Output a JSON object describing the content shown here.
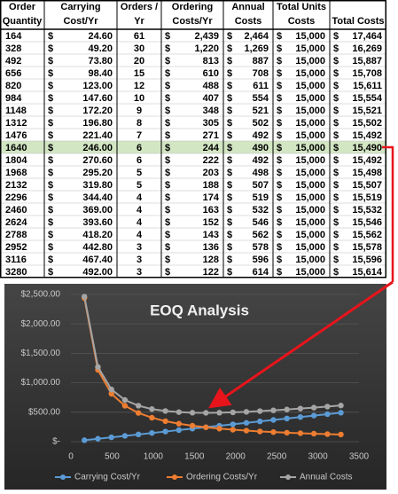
{
  "table": {
    "currency": "$",
    "header": [
      [
        "Order",
        "Quantity"
      ],
      [
        "Carrying",
        "Cost/Yr"
      ],
      [
        "Orders /",
        "Yr"
      ],
      [
        "Ordering",
        "Costs/Yr"
      ],
      [
        "Annual",
        "Costs"
      ],
      [
        "Total Units",
        "Costs"
      ],
      [
        "Total Costs"
      ]
    ],
    "rows": [
      [
        "164",
        "24.60",
        "61",
        "2,439",
        "2,464",
        "15,000",
        "17,464"
      ],
      [
        "328",
        "49.20",
        "30",
        "1,220",
        "1,269",
        "15,000",
        "16,269"
      ],
      [
        "492",
        "73.80",
        "20",
        "813",
        "887",
        "15,000",
        "15,887"
      ],
      [
        "656",
        "98.40",
        "15",
        "610",
        "708",
        "15,000",
        "15,708"
      ],
      [
        "820",
        "123.00",
        "12",
        "488",
        "611",
        "15,000",
        "15,611"
      ],
      [
        "984",
        "147.60",
        "10",
        "407",
        "554",
        "15,000",
        "15,554"
      ],
      [
        "1148",
        "172.20",
        "9",
        "348",
        "521",
        "15,000",
        "15,521"
      ],
      [
        "1312",
        "196.80",
        "8",
        "305",
        "502",
        "15,000",
        "15,502"
      ],
      [
        "1476",
        "221.40",
        "7",
        "271",
        "492",
        "15,000",
        "15,492"
      ],
      [
        "1640",
        "246.00",
        "6",
        "244",
        "490",
        "15,000",
        "15,490"
      ],
      [
        "1804",
        "270.60",
        "6",
        "222",
        "492",
        "15,000",
        "15,492"
      ],
      [
        "1968",
        "295.20",
        "5",
        "203",
        "498",
        "15,000",
        "15,498"
      ],
      [
        "2132",
        "319.80",
        "5",
        "188",
        "507",
        "15,000",
        "15,507"
      ],
      [
        "2296",
        "344.40",
        "4",
        "174",
        "519",
        "15,000",
        "15,519"
      ],
      [
        "2460",
        "369.00",
        "4",
        "163",
        "532",
        "15,000",
        "15,532"
      ],
      [
        "2624",
        "393.60",
        "4",
        "152",
        "546",
        "15,000",
        "15,546"
      ],
      [
        "2788",
        "418.20",
        "4",
        "143",
        "562",
        "15,000",
        "15,562"
      ],
      [
        "2952",
        "442.80",
        "3",
        "136",
        "578",
        "15,000",
        "15,578"
      ],
      [
        "3116",
        "467.40",
        "3",
        "128",
        "596",
        "15,000",
        "15,596"
      ],
      [
        "3280",
        "492.00",
        "3",
        "122",
        "614",
        "15,000",
        "15,614"
      ]
    ]
  },
  "chart_data": {
    "type": "line",
    "title": "EOQ Analysis",
    "x": [
      164,
      328,
      492,
      656,
      820,
      984,
      1148,
      1312,
      1476,
      1640,
      1804,
      1968,
      2132,
      2296,
      2460,
      2624,
      2788,
      2952,
      3116,
      3280
    ],
    "series": [
      {
        "name": "Carrying Cost/Yr",
        "color": "#5b9bd5",
        "values": [
          24.6,
          49.2,
          73.8,
          98.4,
          123,
          147.6,
          172.2,
          196.8,
          221.4,
          246,
          270.6,
          295.2,
          319.8,
          344.4,
          369,
          393.6,
          418.2,
          442.8,
          467.4,
          492
        ]
      },
      {
        "name": "Ordering Costs/Yr",
        "color": "#ed7d31",
        "values": [
          2439,
          1220,
          813,
          610,
          488,
          407,
          348,
          305,
          271,
          244,
          222,
          203,
          188,
          174,
          163,
          152,
          143,
          136,
          128,
          122
        ]
      },
      {
        "name": "Annual Costs",
        "color": "#a5a5a5",
        "values": [
          2464,
          1269,
          887,
          708,
          611,
          554,
          521,
          502,
          492,
          490,
          492,
          498,
          507,
          519,
          532,
          546,
          562,
          578,
          596,
          614
        ]
      }
    ],
    "xlim": [
      0,
      3500
    ],
    "xticks": [
      0,
      500,
      1000,
      1500,
      2000,
      2500,
      3000,
      3500
    ],
    "ylim": [
      0,
      2500
    ],
    "yticks": [
      {
        "value": 0,
        "label": "$-"
      },
      {
        "value": 500,
        "label": "$500.00"
      },
      {
        "value": 1000,
        "label": "$1,000.00"
      },
      {
        "value": 1500,
        "label": "$1,500.00"
      },
      {
        "value": 2000,
        "label": "$2,000.00"
      },
      {
        "value": 2500,
        "label": "$2,500.00"
      }
    ],
    "grid": true,
    "legend": "bottom"
  }
}
